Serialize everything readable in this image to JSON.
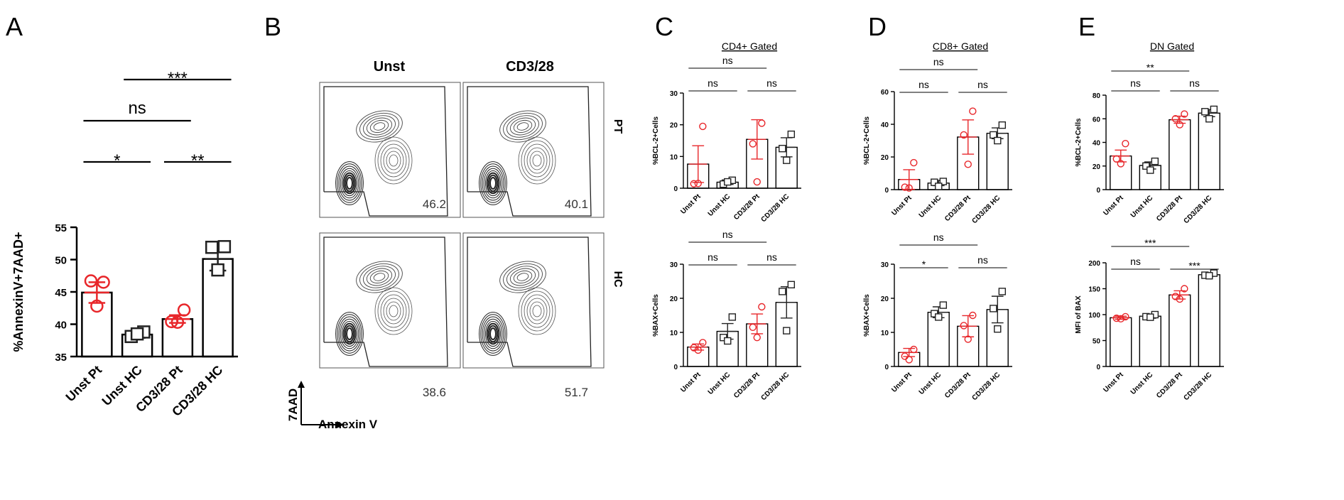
{
  "panel_letters": {
    "A": "A",
    "B": "B",
    "C": "C",
    "D": "D",
    "E": "E"
  },
  "colors": {
    "pt": "#e8262a",
    "hc": "#222222"
  },
  "chart_data": [
    {
      "id": "A",
      "type": "bar",
      "categories": [
        "Unst Pt",
        "Unst HC",
        "CD3/28 Pt",
        "CD3/28 HC"
      ],
      "values": [
        44.9,
        38.4,
        40.8,
        50.1
      ],
      "errors": [
        1.6,
        0.5,
        0.6,
        1.8
      ],
      "points": [
        [
          46.5,
          46.7,
          42.8
        ],
        [
          38.8,
          38.1,
          38.5
        ],
        [
          42.2,
          40.4,
          40.3
        ],
        [
          52.0,
          51.9,
          48.4
        ]
      ],
      "markers": [
        "circle",
        "square",
        "circle",
        "square"
      ],
      "ylabel": "%AnnexinV+7AAD+",
      "ylim": [
        35,
        55
      ],
      "yticks": [
        35,
        40,
        45,
        50,
        55
      ],
      "sig": [
        {
          "from": 0,
          "to": 1,
          "label": "*",
          "level": 1
        },
        {
          "from": 2,
          "to": 3,
          "label": "**",
          "level": 1
        },
        {
          "from": 0,
          "to": 2,
          "label": "ns",
          "level": 2
        },
        {
          "from": 1,
          "to": 3,
          "label": "***",
          "level": 3
        }
      ]
    },
    {
      "id": "C1",
      "type": "bar",
      "title": "CD4+ Gated",
      "categories": [
        "Unst Pt",
        "Unst HC",
        "CD3/28 Pt",
        "CD3/28 HC"
      ],
      "values": [
        7.6,
        1.9,
        15.4,
        12.9
      ],
      "errors": [
        5.8,
        0.7,
        6.2,
        3.0
      ],
      "points": [
        [
          19.5,
          1.4,
          1.5
        ],
        [
          2.5,
          1.3,
          2.0
        ],
        [
          20.5,
          14.0,
          2.0
        ],
        [
          17.0,
          12.5,
          8.8
        ]
      ],
      "markers": [
        "circle",
        "square",
        "circle",
        "square"
      ],
      "ylabel": "%BCL-2+Cells",
      "ylim": [
        0,
        30
      ],
      "yticks": [
        0,
        10,
        20,
        30
      ],
      "sig": [
        {
          "from": 0,
          "to": 1,
          "label": "ns",
          "level": 1
        },
        {
          "from": 2,
          "to": 3,
          "label": "ns",
          "level": 1
        },
        {
          "from": 0,
          "to": 2,
          "label": "ns",
          "level": 2
        }
      ]
    },
    {
      "id": "C2",
      "type": "bar",
      "categories": [
        "Unst Pt",
        "Unst HC",
        "CD3/28 Pt",
        "CD3/28 HC"
      ],
      "values": [
        5.7,
        10.3,
        12.5,
        18.8
      ],
      "errors": [
        0.9,
        2.3,
        2.9,
        4.6
      ],
      "points": [
        [
          7.0,
          5.5,
          4.8
        ],
        [
          14.5,
          8.5,
          7.5
        ],
        [
          17.5,
          11.5,
          8.5
        ],
        [
          24.0,
          22.0,
          10.5
        ]
      ],
      "markers": [
        "circle",
        "square",
        "circle",
        "square"
      ],
      "ylabel": "%BAX+Cells",
      "ylim": [
        0,
        30
      ],
      "yticks": [
        0,
        10,
        20,
        30
      ],
      "sig": [
        {
          "from": 0,
          "to": 1,
          "label": "ns",
          "level": 1
        },
        {
          "from": 2,
          "to": 3,
          "label": "ns",
          "level": 1
        },
        {
          "from": 0,
          "to": 2,
          "label": "ns",
          "level": 2
        }
      ]
    },
    {
      "id": "D1",
      "type": "bar",
      "title": "CD8+ Gated",
      "categories": [
        "Unst Pt",
        "Unst HC",
        "CD3/28 Pt",
        "CD3/28 HC"
      ],
      "values": [
        6.2,
        4.0,
        32.2,
        34.5
      ],
      "errors": [
        6.0,
        1.6,
        10.5,
        3.3
      ],
      "points": [
        [
          16.5,
          1.5,
          1.0
        ],
        [
          5.0,
          4.5,
          2.0
        ],
        [
          48.0,
          33.5,
          15.5
        ],
        [
          39.5,
          33.5,
          30.0
        ]
      ],
      "markers": [
        "circle",
        "square",
        "circle",
        "square"
      ],
      "ylabel": "%BCL-2+Cells",
      "ylim": [
        0,
        60
      ],
      "yticks": [
        0,
        20,
        40,
        60
      ],
      "sig": [
        {
          "from": 0,
          "to": 1,
          "label": "ns",
          "level": 1
        },
        {
          "from": 2,
          "to": 3,
          "label": "ns",
          "level": 1
        },
        {
          "from": 0,
          "to": 2,
          "label": "ns",
          "level": 2
        }
      ]
    },
    {
      "id": "D2",
      "type": "bar",
      "categories": [
        "Unst Pt",
        "Unst HC",
        "CD3/28 Pt",
        "CD3/28 HC"
      ],
      "values": [
        4.1,
        15.9,
        11.8,
        16.7
      ],
      "errors": [
        1.2,
        1.6,
        3.1,
        3.9
      ],
      "points": [
        [
          5.0,
          3.0,
          2.0
        ],
        [
          18.0,
          15.5,
          14.5
        ],
        [
          15.0,
          12.0,
          8.0
        ],
        [
          22.0,
          17.0,
          11.0
        ]
      ],
      "markers": [
        "circle",
        "square",
        "circle",
        "square"
      ],
      "ylabel": "%BAX+Cells",
      "ylim": [
        0,
        30
      ],
      "yticks": [
        0,
        10,
        20,
        30
      ],
      "sig": [
        {
          "from": 0,
          "to": 1,
          "label": "*",
          "level": 1
        },
        {
          "from": 2,
          "to": 3,
          "label": "ns",
          "level": 1
        },
        {
          "from": 0,
          "to": 2,
          "label": "ns",
          "level": 2
        }
      ]
    },
    {
      "id": "E1",
      "type": "bar",
      "title": "DN Gated",
      "categories": [
        "Unst Pt",
        "Unst HC",
        "CD3/28 Pt",
        "CD3/28 HC"
      ],
      "values": [
        28.5,
        20.5,
        59.2,
        64.8
      ],
      "errors": [
        5.0,
        3.0,
        3.0,
        3.0
      ],
      "points": [
        [
          39.0,
          26.0,
          22.0
        ],
        [
          24.0,
          20.0,
          16.5
        ],
        [
          64.0,
          60.0,
          55.0
        ],
        [
          68.0,
          66.0,
          60.0
        ]
      ],
      "markers": [
        "circle",
        "square",
        "circle",
        "square"
      ],
      "ylabel": "%BCL-2+Cells",
      "ylim": [
        0,
        80
      ],
      "yticks": [
        0,
        20,
        40,
        60,
        80
      ],
      "sig": [
        {
          "from": 0,
          "to": 1,
          "label": "ns",
          "level": 1
        },
        {
          "from": 2,
          "to": 3,
          "label": "ns",
          "level": 1
        },
        {
          "from": 0,
          "to": 2,
          "label": "**",
          "level": 2
        }
      ]
    },
    {
      "id": "E2",
      "type": "bar",
      "categories": [
        "Unst Pt",
        "Unst HC",
        "CD3/28 Pt",
        "CD3/28 HC"
      ],
      "values": [
        94,
        97,
        138,
        177
      ],
      "errors": [
        3,
        4,
        8,
        3
      ],
      "points": [
        [
          96,
          93,
          92
        ],
        [
          100,
          96,
          95
        ],
        [
          150,
          135,
          130
        ],
        [
          180,
          176,
          175
        ]
      ],
      "markers": [
        "circle",
        "square",
        "circle",
        "square"
      ],
      "ylabel": "MFI of BAX",
      "ylim": [
        0,
        200
      ],
      "yticks": [
        0,
        50,
        100,
        150,
        200
      ],
      "sig": [
        {
          "from": 0,
          "to": 1,
          "label": "ns",
          "level": 1
        },
        {
          "from": 2,
          "to": 3,
          "label": "***",
          "level": 1
        },
        {
          "from": 0,
          "to": 2,
          "label": "***",
          "level": 2
        }
      ]
    }
  ],
  "flow": {
    "col_labels": [
      "Unst",
      "CD3/28"
    ],
    "row_labels": [
      "PT",
      "HC"
    ],
    "values": [
      "46.2",
      "40.1",
      "38.6",
      "51.7"
    ],
    "y_axis_label": "7AAD",
    "x_axis_label": "Annexin V"
  }
}
